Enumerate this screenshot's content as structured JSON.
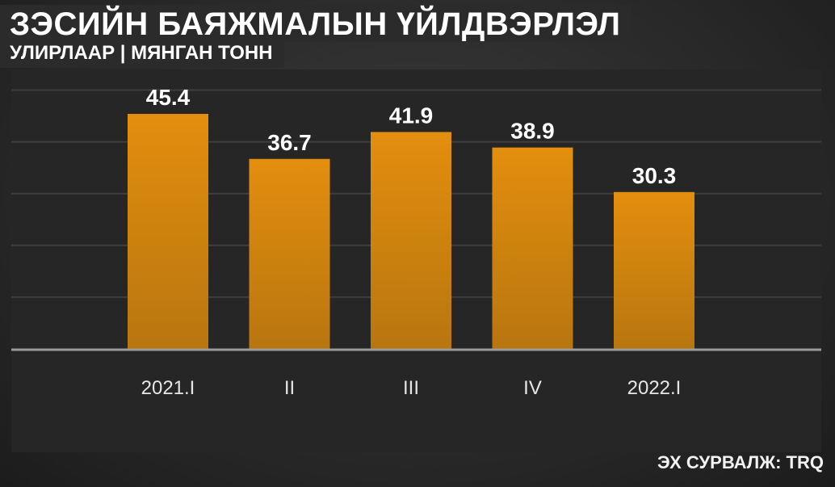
{
  "chart_data": {
    "type": "bar",
    "title": "ЗЭСИЙН БАЯЖМАЛЫН ҮЙЛДВЭРЛЭЛ",
    "subtitle": "УЛИРЛААР | МЯНГАН ТОНН",
    "categories": [
      "2021.I",
      "II",
      "III",
      "IV",
      "2022.I"
    ],
    "values": [
      45.4,
      36.7,
      41.9,
      38.9,
      30.3
    ],
    "ylim": [
      0,
      50
    ],
    "grid": true,
    "legend": "none",
    "bar_color_top": "#e38e0e",
    "bar_color_bottom": "#b8760f"
  },
  "source": "ЭХ СУРВАЛЖ: TRQ"
}
